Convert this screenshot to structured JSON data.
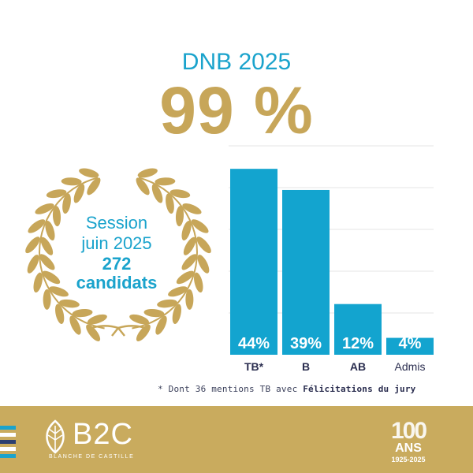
{
  "header": {
    "subtitle": "DNB 2025",
    "headline": "99 %"
  },
  "wreath": {
    "line1": "Session",
    "line2": "juin 2025",
    "line3": "272",
    "line4": "candidats"
  },
  "chart_data": {
    "type": "bar",
    "categories": [
      "TB*",
      "B",
      "AB",
      "Admis"
    ],
    "values": [
      44,
      39,
      12,
      4
    ],
    "value_labels": [
      "44%",
      "39%",
      "12%",
      "4%"
    ],
    "ylim": [
      0,
      50
    ],
    "grid": true,
    "bar_color": "#13a4cf"
  },
  "footnote": {
    "prefix": "* Dont 36 mentions TB avec ",
    "emphasis": "Félicitations du jury"
  },
  "footer": {
    "logo": "B2C",
    "logo_subtitle": "BLANCHE DE CASTILLE",
    "anniversary_number": "100",
    "anniversary_label": "ANS",
    "anniversary_years": "1925-2025"
  },
  "colors": {
    "blue": "#1aa3cc",
    "gold": "#c7a659",
    "footer_gold": "#c9ab5e",
    "stripes": [
      "#1aa3cc",
      "#ffffff",
      "#2b3f70",
      "#ffffff",
      "#1aa3cc"
    ]
  }
}
